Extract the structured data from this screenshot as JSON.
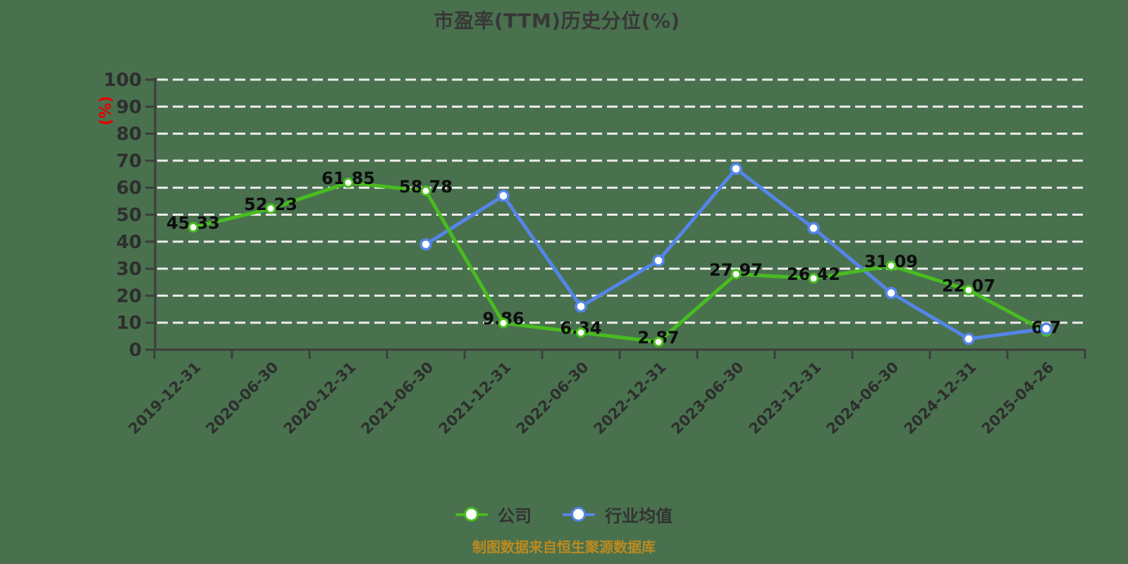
{
  "page": {
    "background_color": "#49714E"
  },
  "chart_data": {
    "type": "line",
    "title": "市盈率(TTM)历史分位(%)",
    "y_unit": "(%)",
    "y_unit_color": "#E60000",
    "caption": "制图数据来自恒生聚源数据库",
    "caption_color": "#BD8A1E",
    "grid": "horizontal-dashed-white",
    "legend_position": "bottom",
    "ylim": [
      0,
      100
    ],
    "y_ticks": [
      0,
      10,
      20,
      30,
      40,
      50,
      60,
      70,
      80,
      90,
      100
    ],
    "x_categories": [
      "2019-12-31",
      "2020-06-30",
      "2020-12-31",
      "2021-06-30",
      "2021-12-31",
      "2022-06-30",
      "2022-12-31",
      "2023-06-30",
      "2023-12-31",
      "2024-06-30",
      "2024-12-31",
      "2025-04-26"
    ],
    "series": [
      {
        "name": "公司",
        "color": "#49BC20",
        "marker": "circle-white-fill",
        "labels_shown": true,
        "values": [
          45.33,
          52.23,
          61.85,
          58.78,
          9.86,
          6.34,
          2.87,
          27.97,
          26.42,
          31.09,
          22.07,
          6.7
        ]
      },
      {
        "name": "行业均值",
        "color": "#5585E8",
        "marker": "circle-white-fill",
        "labels_shown": false,
        "values": [
          null,
          null,
          null,
          39,
          57,
          16,
          33,
          67,
          45,
          21,
          4,
          7.8
        ]
      }
    ]
  }
}
